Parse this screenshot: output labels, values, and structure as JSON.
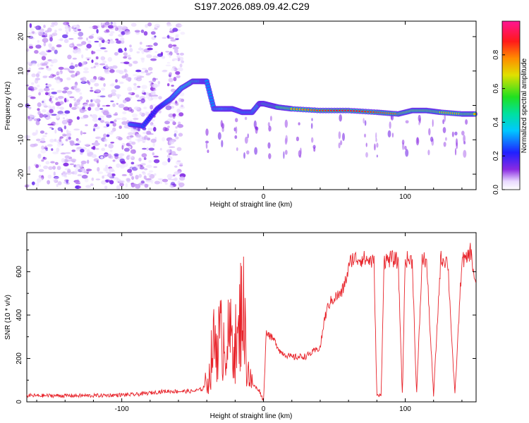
{
  "title": "S197.2026.089.09.42.C29",
  "chart_data": [
    {
      "type": "heatmap",
      "title": "S197.2026.089.09.42.C29",
      "xlabel": "Height of straight line (km)",
      "ylabel": "Frequency (Hz)",
      "xlim": [
        -167,
        150
      ],
      "ylim": [
        -24.5,
        24.5
      ],
      "x_ticks": [
        -100,
        0,
        100
      ],
      "y_ticks": [
        -20,
        -10,
        0,
        10,
        20
      ],
      "colorbar": {
        "label": "Normalized spectral amplitude",
        "range": [
          0,
          1
        ],
        "ticks": [
          0.0,
          0.2,
          0.4,
          0.6,
          0.8
        ],
        "tick_labels": [
          "0.0",
          "0.2",
          "0.4",
          "0.6",
          "0.8"
        ]
      },
      "ridge": {
        "x": [
          -94,
          -85,
          -75,
          -65,
          -58,
          -50,
          -44,
          -40,
          -35,
          -28,
          -22,
          -15,
          -8,
          -3,
          0,
          5,
          10,
          20,
          40,
          60,
          80,
          95,
          105,
          115,
          125,
          140,
          150
        ],
        "frequency": [
          -5.5,
          -6,
          -1,
          2,
          5,
          7,
          7,
          7,
          -1,
          -1,
          -1,
          -2,
          -2,
          0.5,
          0.5,
          0,
          -0.5,
          -1,
          -1.5,
          -1.5,
          -2,
          -2.5,
          -1.5,
          -1.5,
          -2,
          -2.5,
          -2.5
        ],
        "amplitude": [
          0.3,
          0.25,
          0.2,
          0.3,
          0.35,
          0.4,
          0.35,
          0.3,
          0.3,
          0.35,
          0.3,
          0.3,
          0.3,
          0.4,
          0.5,
          0.55,
          0.6,
          0.75,
          0.85,
          0.9,
          0.85,
          0.8,
          0.7,
          0.75,
          0.75,
          0.75,
          0.75
        ]
      }
    },
    {
      "type": "line",
      "xlabel": "Height of straight line (km)",
      "ylabel": "SNR (10 * v/v)",
      "xlim": [
        -167,
        150
      ],
      "ylim": [
        0,
        780
      ],
      "x_ticks": [
        -100,
        0,
        100
      ],
      "y_ticks": [
        0,
        200,
        400,
        600
      ],
      "color": "#e8232a",
      "series": [
        {
          "name": "SNR",
          "x": [
            -167,
            -120,
            -90,
            -70,
            -50,
            -43,
            -38,
            -36,
            -34,
            -30,
            -25,
            -22,
            -18,
            -15,
            -12,
            -10,
            -8,
            -5,
            -3,
            0,
            2,
            5,
            8,
            12,
            20,
            30,
            40,
            43,
            46,
            50,
            55,
            58,
            62,
            70,
            76,
            78,
            80,
            83,
            85,
            90,
            95,
            98,
            100,
            105,
            108,
            112,
            115,
            120,
            125,
            130,
            135,
            140,
            143,
            146,
            150
          ],
          "values": [
            25,
            25,
            30,
            45,
            45,
            55,
            120,
            250,
            280,
            290,
            280,
            300,
            250,
            520,
            200,
            120,
            80,
            60,
            50,
            0,
            330,
            300,
            280,
            230,
            205,
            210,
            250,
            380,
            450,
            480,
            500,
            560,
            660,
            660,
            650,
            640,
            25,
            25,
            650,
            660,
            650,
            25,
            660,
            650,
            25,
            660,
            650,
            25,
            660,
            650,
            25,
            660,
            650,
            700,
            520
          ]
        }
      ]
    }
  ]
}
